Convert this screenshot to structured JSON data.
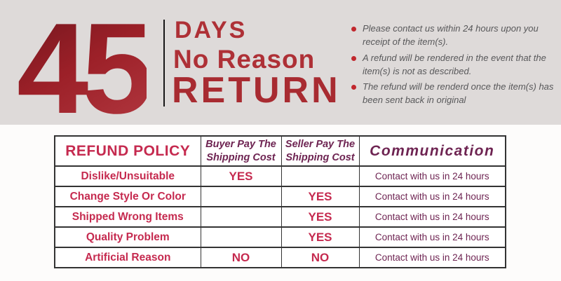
{
  "banner": {
    "number": "45",
    "title_line1": "DAYS",
    "title_line2": "No Reason",
    "title_line3": "RETURN",
    "bullets": [
      "Please contact us within 24 hours upon you receipt of the item(s).",
      "A refund will be rendered in the event that the item(s) is not as described.",
      "The refund will be renderd once the item(s) has been sent back in original"
    ]
  },
  "table": {
    "headers": {
      "policy": "REFUND POLICY",
      "buyer": "Buyer Pay The\nShipping Cost",
      "seller": "Seller Pay The\nShipping Cost",
      "communication": "Communication"
    },
    "rows": [
      {
        "policy": "Dislike/Unsuitable",
        "buyer": "YES",
        "seller": "",
        "communication": "Contact with us in 24 hours"
      },
      {
        "policy": "Change Style Or Color",
        "buyer": "",
        "seller": "YES",
        "communication": "Contact with us in 24 hours"
      },
      {
        "policy": "Shipped Wrong Items",
        "buyer": "",
        "seller": "YES",
        "communication": "Contact with us in 24 hours"
      },
      {
        "policy": "Quality Problem",
        "buyer": "",
        "seller": "YES",
        "communication": "Contact with us in 24 hours"
      },
      {
        "policy": "Artificial Reason",
        "buyer": "NO",
        "seller": "NO",
        "communication": "Contact with us in 24 hours"
      }
    ]
  },
  "colors": {
    "banner_bg": "#dedad9",
    "big_number_dark": "#6f151d",
    "big_number_light": "#b23840",
    "banner_red": "#ae3036",
    "crimson": "#c52a4f",
    "maroon": "#6e2452",
    "bullet_dot": "#c1272d",
    "bullet_text": "#58585a",
    "table_border": "#333333"
  }
}
